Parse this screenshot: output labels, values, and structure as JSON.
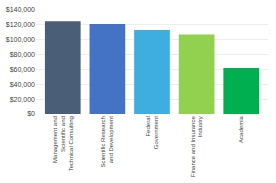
{
  "chart_data": {
    "type": "bar",
    "categories": [
      "Management and\nScientific and\nTechnical Consulting",
      "Scientific Research\nand Development",
      "Federal\nGovernment",
      "Finance and Insurance\nIndustry",
      "Academia"
    ],
    "values": [
      125000,
      121000,
      113000,
      107000,
      62000
    ],
    "colors": [
      "#4a5f77",
      "#4472c4",
      "#3eaee0",
      "#92d050",
      "#00b050"
    ],
    "ylim": [
      0,
      140000
    ],
    "yticks": [
      {
        "value": 0,
        "label": "$0"
      },
      {
        "value": 20000,
        "label": "$20,000"
      },
      {
        "value": 40000,
        "label": "$40,000"
      },
      {
        "value": 60000,
        "label": "$60,000"
      },
      {
        "value": 80000,
        "label": "$80,000"
      },
      {
        "value": 100000,
        "label": "$100,000"
      },
      {
        "value": 120000,
        "label": "$120,000"
      },
      {
        "value": 140000,
        "label": "$140,000"
      }
    ],
    "grid": true
  }
}
